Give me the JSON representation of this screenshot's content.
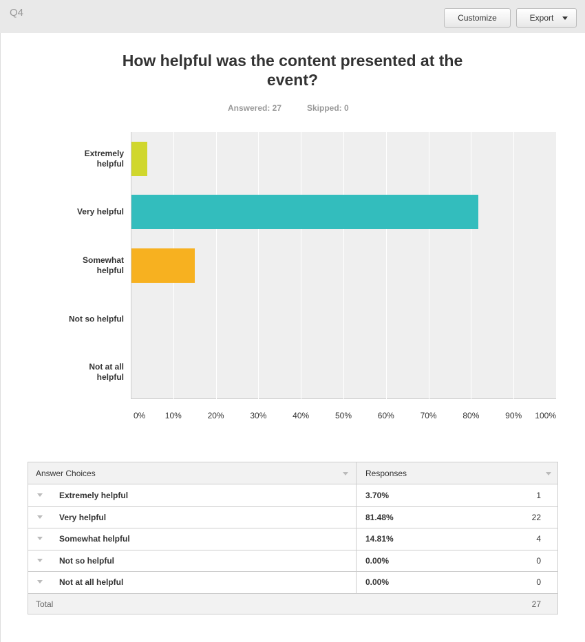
{
  "header": {
    "question": "Q4",
    "buttons": [
      "Customize",
      "Export"
    ]
  },
  "chart_data": {
    "type": "bar",
    "orientation": "horizontal",
    "title": "How helpful was the content presented at the event?",
    "answered": "Answered: 27",
    "skipped": "Skipped: 0",
    "categories": [
      "Extremely helpful",
      "Very helpful",
      "Somewhat helpful",
      "Not so helpful",
      "Not at all helpful"
    ],
    "values": [
      3.7,
      81.48,
      14.81,
      0,
      0
    ],
    "colors": [
      "#d0d72d",
      "#33bdbd",
      "#f7b120",
      "#888888",
      "#888888"
    ],
    "xlim": [
      0,
      100
    ],
    "xticks": [
      {
        "value": 0,
        "label": "0%"
      },
      {
        "value": 10,
        "label": "10%"
      },
      {
        "value": 20,
        "label": "20%"
      },
      {
        "value": 30,
        "label": "30%"
      },
      {
        "value": 40,
        "label": "40%"
      },
      {
        "value": 50,
        "label": "50%"
      },
      {
        "value": 60,
        "label": "60%"
      },
      {
        "value": 70,
        "label": "70%"
      },
      {
        "value": 80,
        "label": "80%"
      },
      {
        "value": 90,
        "label": "90%"
      },
      {
        "value": 100,
        "label": "100%"
      }
    ],
    "grid": true
  },
  "table": {
    "columns": [
      "Answer Choices",
      "Responses"
    ],
    "rows": [
      {
        "choice": "Extremely helpful",
        "percent": "3.70%",
        "count": 1
      },
      {
        "choice": "Very helpful",
        "percent": "81.48%",
        "count": 22
      },
      {
        "choice": "Somewhat helpful",
        "percent": "14.81%",
        "count": 4
      },
      {
        "choice": "Not so helpful",
        "percent": "0.00%",
        "count": 0
      },
      {
        "choice": "Not at all helpful",
        "percent": "0.00%",
        "count": 0
      }
    ],
    "total": {
      "label": "Total",
      "count": 27
    }
  }
}
